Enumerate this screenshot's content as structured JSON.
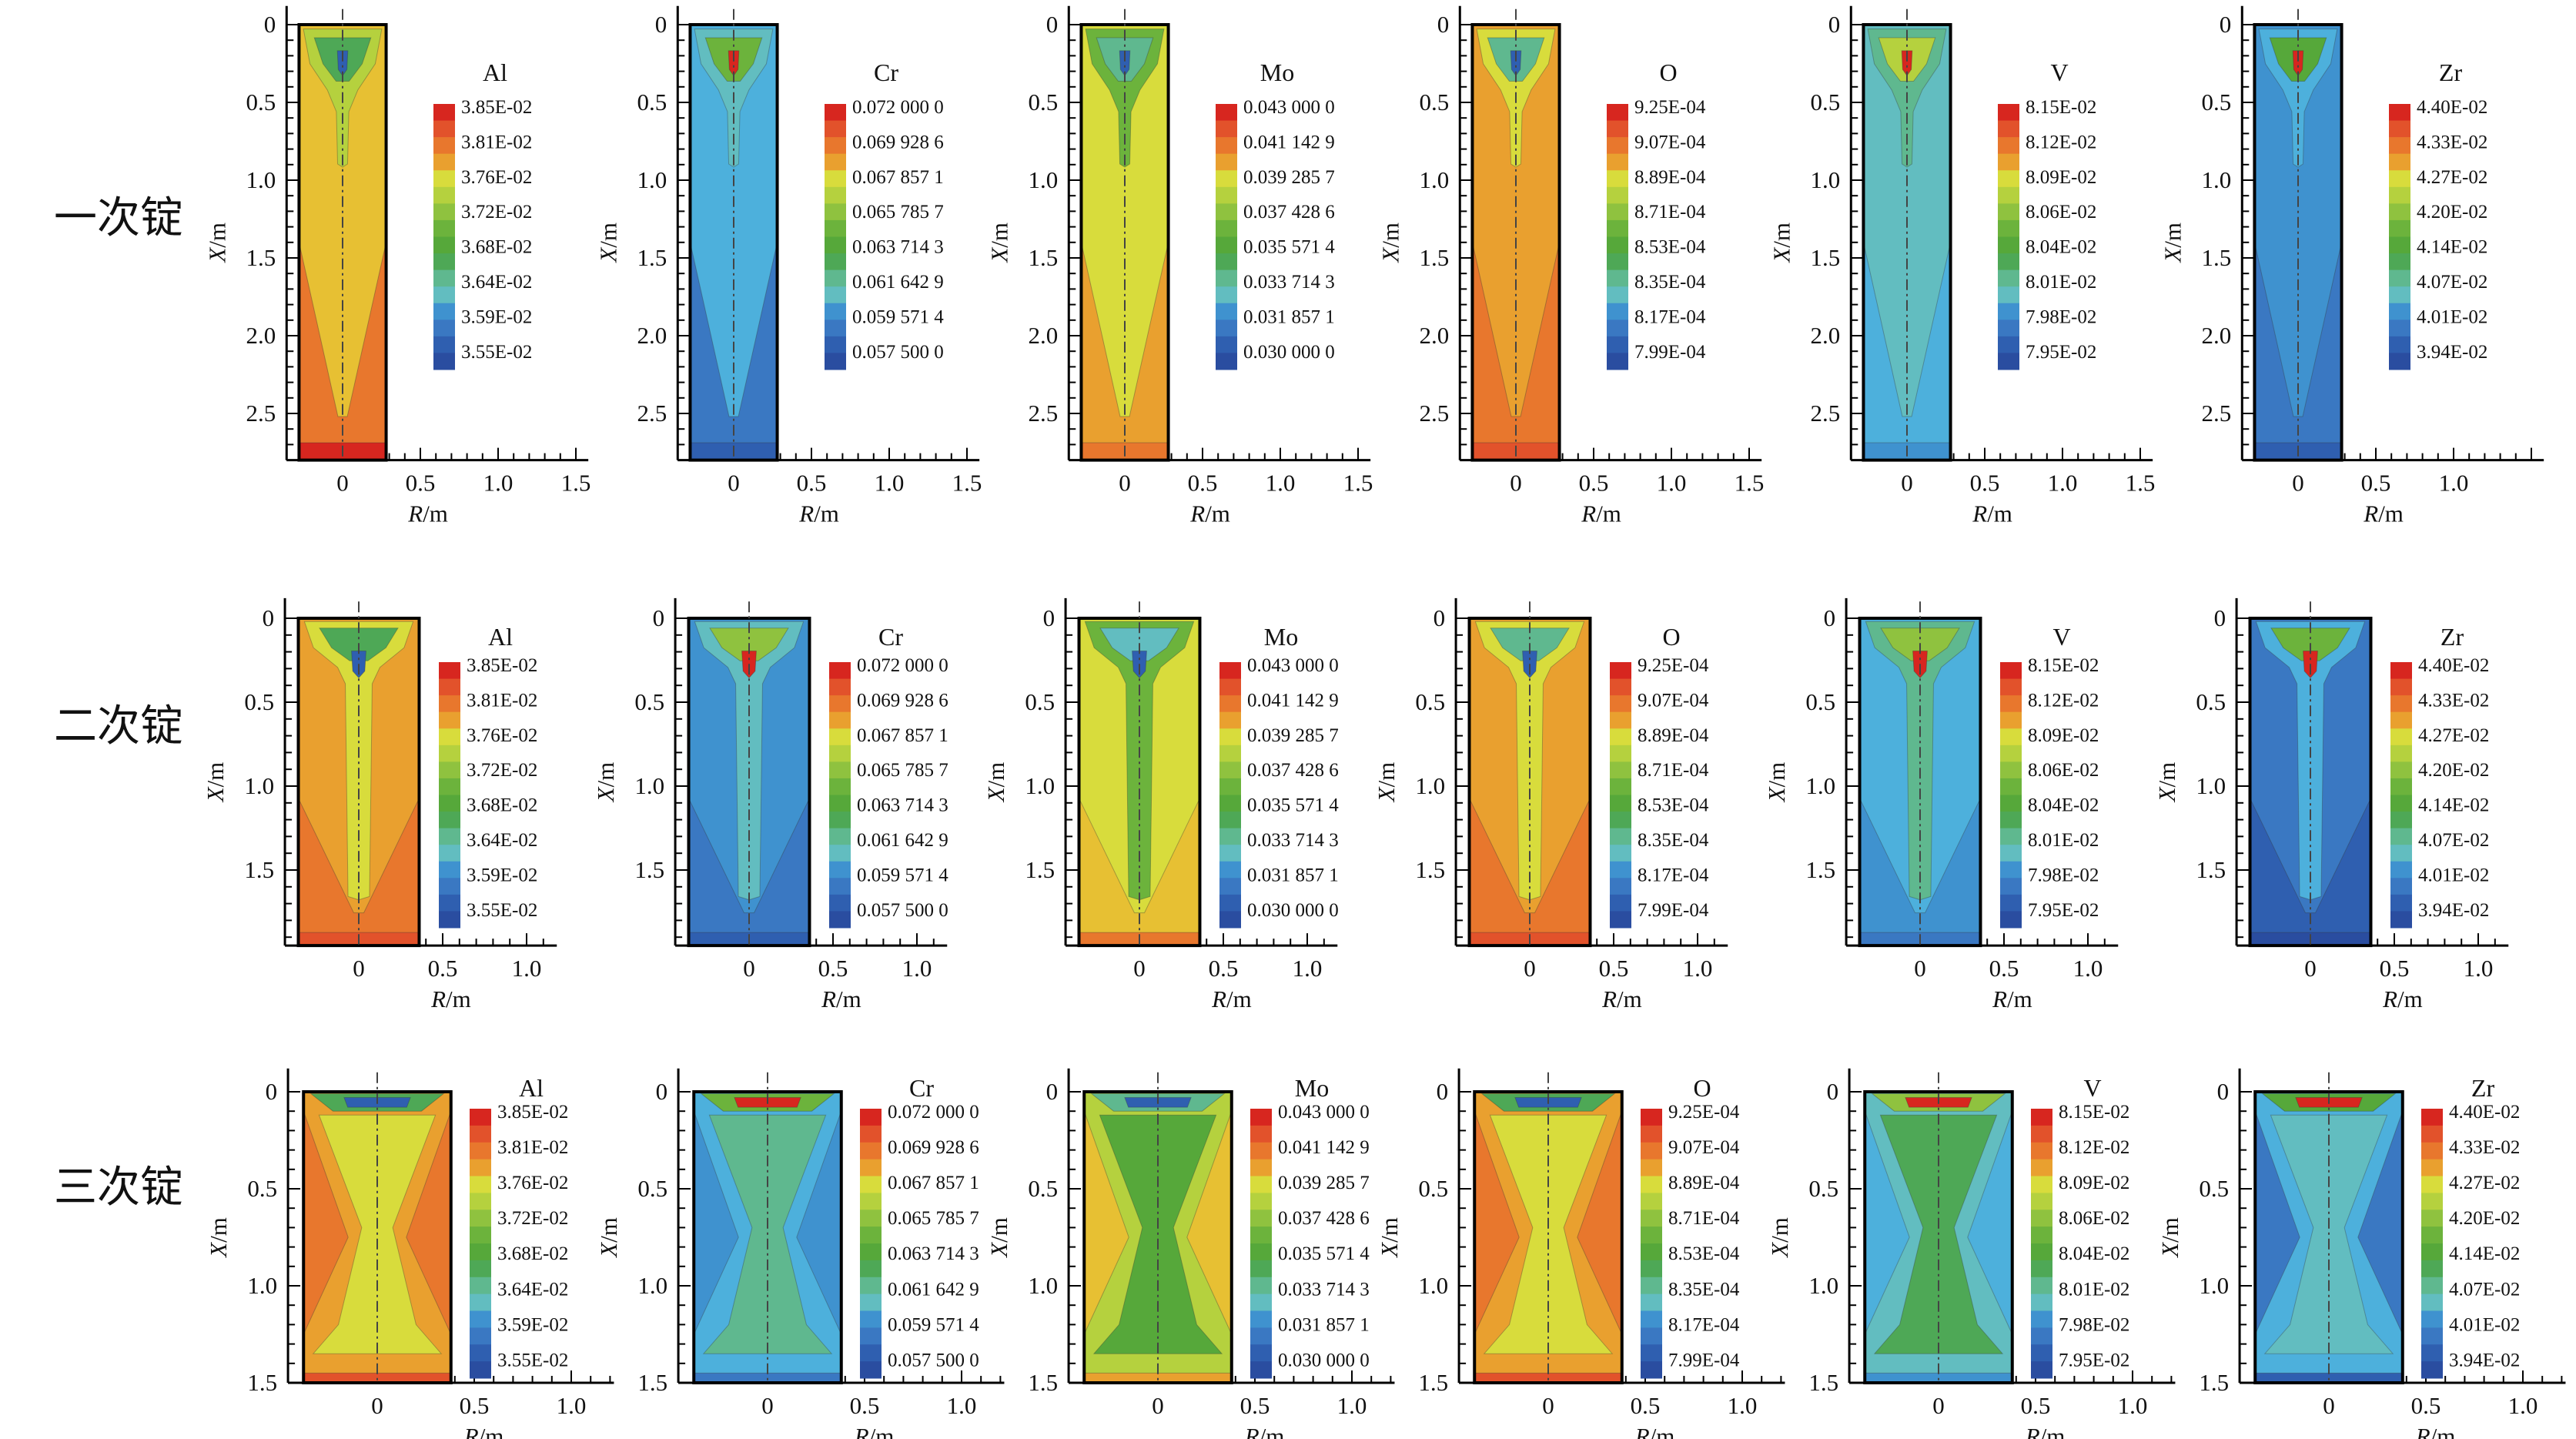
{
  "chart_data": {
    "type": "contour",
    "xlabel_var": "R",
    "xlabel_unit": "/m",
    "ylabel_var": "X",
    "ylabel_unit": "/m",
    "rows": [
      {
        "label": "一次锭",
        "y_ticks": [
          "0",
          "0.5",
          "1.0",
          "1.5",
          "2.0",
          "2.5"
        ],
        "x_ticks": [
          "0",
          "0.5",
          "1.0",
          "1.5"
        ],
        "last_panel_x_ticks": [
          "0",
          "0.5",
          "1.0"
        ],
        "ylim": [
          0,
          2.8
        ],
        "ingot_radius_m": 0.28
      },
      {
        "label": "二次锭",
        "y_ticks": [
          "0",
          "0.5",
          "1.0",
          "1.5"
        ],
        "x_ticks": [
          "0",
          "0.5",
          "1.0"
        ],
        "last_panel_x_ticks": [
          "0",
          "0.5",
          "1.0"
        ],
        "ylim": [
          0,
          1.95
        ],
        "ingot_radius_m": 0.36
      },
      {
        "label": "三次锭",
        "y_ticks": [
          "0",
          "0.5",
          "1.0",
          "1.5"
        ],
        "x_ticks": [
          "0",
          "0.5",
          "1.0"
        ],
        "last_panel_x_ticks": [
          "0",
          "0.5",
          "1.0"
        ],
        "ylim": [
          0,
          1.5
        ],
        "ingot_radius_m": 0.38
      }
    ],
    "elements": [
      {
        "name": "Al",
        "levels": [
          "3.85E-02",
          "3.81E-02",
          "3.76E-02",
          "3.72E-02",
          "3.68E-02",
          "3.64E-02",
          "3.59E-02",
          "3.55E-02"
        ]
      },
      {
        "name": "Cr",
        "levels": [
          "0.072 000 0",
          "0.069 928 6",
          "0.067 857 1",
          "0.065 785 7",
          "0.063 714 3",
          "0.061 642 9",
          "0.059 571 4",
          "0.057 500 0"
        ]
      },
      {
        "name": "Mo",
        "levels": [
          "0.043 000 0",
          "0.041 142 9",
          "0.039 285 7",
          "0.037 428 6",
          "0.035 571 4",
          "0.033 714 3",
          "0.031 857 1",
          "0.030 000 0"
        ]
      },
      {
        "name": "O",
        "levels": [
          "9.25E-04",
          "9.07E-04",
          "8.89E-04",
          "8.71E-04",
          "8.53E-04",
          "8.35E-04",
          "8.17E-04",
          "7.99E-04"
        ]
      },
      {
        "name": "V",
        "levels": [
          "8.15E-02",
          "8.12E-02",
          "8.09E-02",
          "8.06E-02",
          "8.04E-02",
          "8.01E-02",
          "7.98E-02",
          "7.95E-02"
        ]
      },
      {
        "name": "Zr",
        "levels": [
          "4.40E-02",
          "4.33E-02",
          "4.27E-02",
          "4.20E-02",
          "4.14E-02",
          "4.07E-02",
          "4.01E-02",
          "3.94E-02"
        ]
      }
    ]
  }
}
